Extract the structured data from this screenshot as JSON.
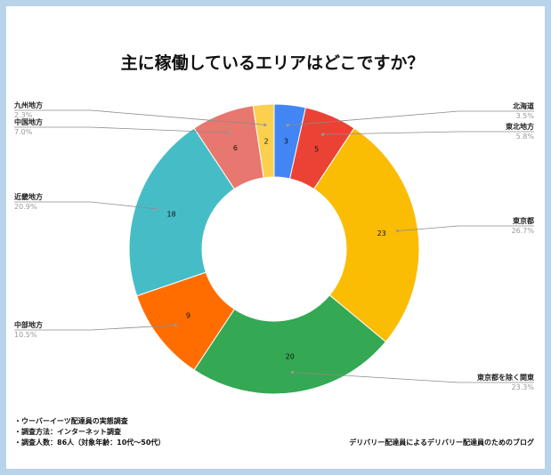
{
  "chart_data": {
    "type": "pie",
    "title": "主に稼働しているエリアはどこですか？",
    "slices": [
      {
        "label": "北海道",
        "value": 3,
        "percent": "3.5%",
        "color": "#4285f4"
      },
      {
        "label": "東北地方",
        "value": 5,
        "percent": "5.8%",
        "color": "#ea4335"
      },
      {
        "label": "東京都",
        "value": 23,
        "percent": "26.7%",
        "color": "#fbbc04"
      },
      {
        "label": "東京都を除く関東",
        "value": 20,
        "percent": "23.3%",
        "color": "#34a853"
      },
      {
        "label": "中部地方",
        "value": 9,
        "percent": "10.5%",
        "color": "#ff6d01"
      },
      {
        "label": "近畿地方",
        "value": 18,
        "percent": "20.9%",
        "color": "#46bdc6"
      },
      {
        "label": "中国地方",
        "value": 6,
        "percent": "7.0%",
        "color": "#e8776f"
      },
      {
        "label": "九州地方",
        "value": 2,
        "percent": "2.3%",
        "color": "#fcd04f"
      }
    ],
    "donut": true
  },
  "notes": [
    "・ウーバーイーツ配達員の実態調査",
    "・調査方法：インターネット調査",
    "・調査人数：86人（対象年齢：10代〜50代）"
  ],
  "credit": "デリバリー配達員によるデリバリー配達員のためのブログ",
  "colors": {
    "frame": "#b9d3ea",
    "background": "#ffffff"
  }
}
